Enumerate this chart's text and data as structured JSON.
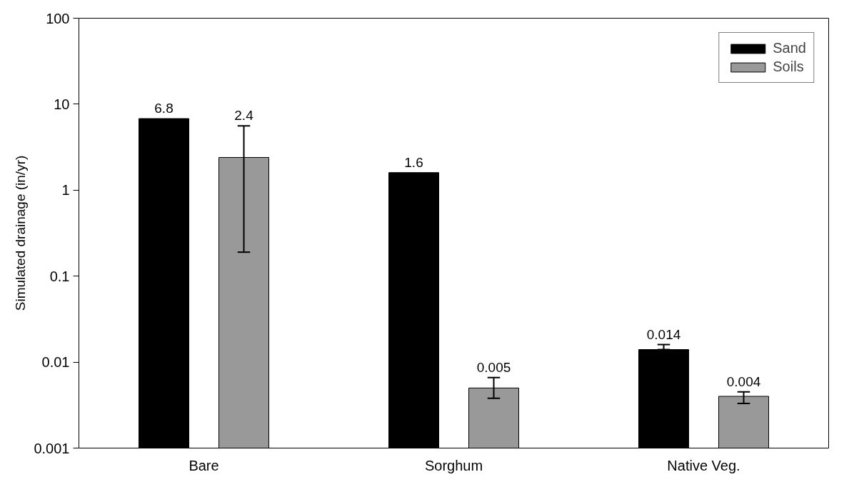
{
  "chart_data": {
    "type": "bar",
    "ylabel": "Simulated drainage (in/yr)",
    "categories": [
      "Bare",
      "Sorghum",
      "Native Veg."
    ],
    "series": [
      {
        "name": "Sand",
        "color": "#000000",
        "values": [
          6.8,
          1.6,
          0.014
        ],
        "errors": [
          null,
          null,
          [
            0.014,
            0.016
          ]
        ],
        "value_labels": [
          "6.8",
          "1.6",
          "0.014"
        ]
      },
      {
        "name": "Soils",
        "color": "#999999",
        "values": [
          2.4,
          0.005,
          0.004
        ],
        "errors": [
          [
            0.19,
            5.6
          ],
          [
            0.0038,
            0.0066
          ],
          [
            0.0033,
            0.0045
          ]
        ],
        "value_labels": [
          "2.4",
          "0.005",
          "0.004"
        ]
      }
    ],
    "log": true,
    "ylim": [
      0.001,
      100
    ],
    "yticks": [
      0.001,
      0.01,
      0.1,
      1,
      10,
      100
    ],
    "grid": false,
    "legend": "top right"
  }
}
